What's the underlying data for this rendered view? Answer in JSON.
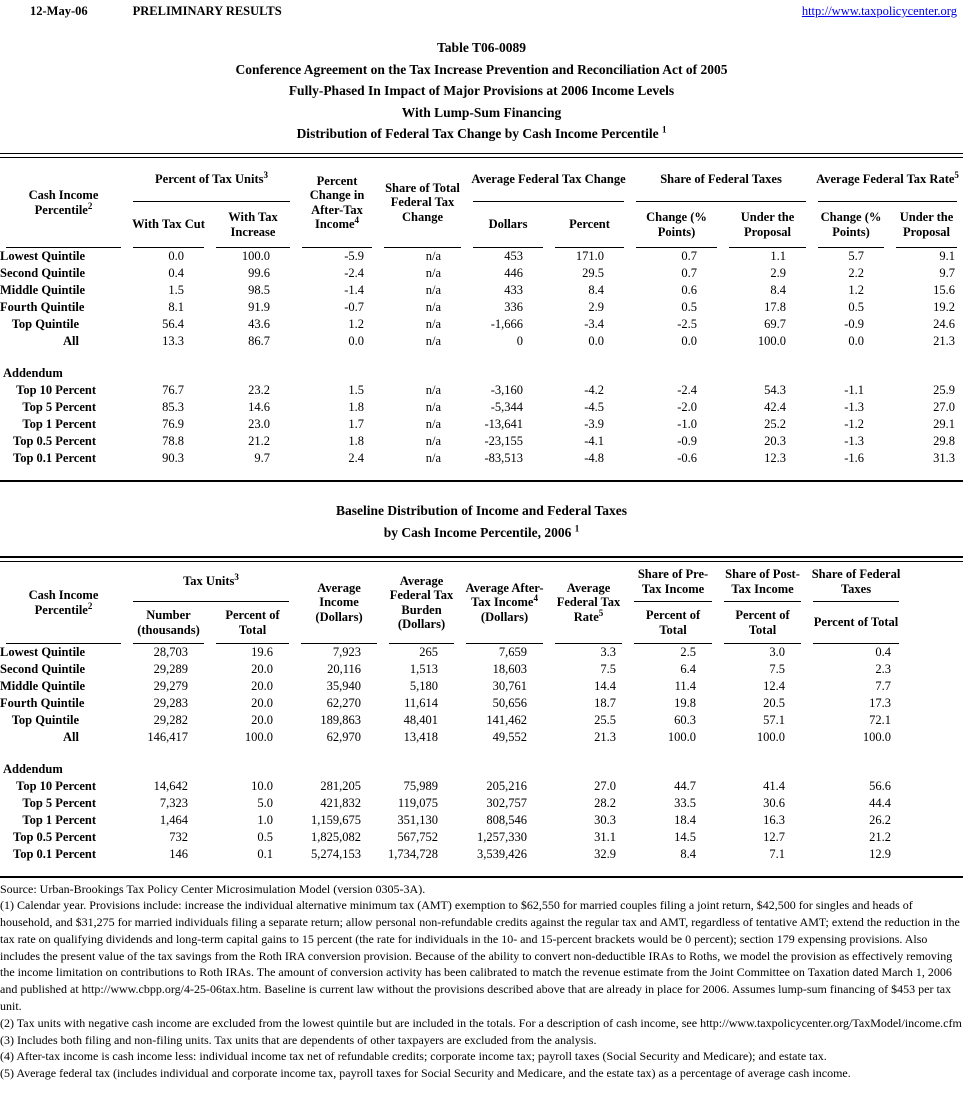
{
  "page_header": {
    "date": "12-May-06",
    "status": "PRELIMINARY RESULTS",
    "url": "http://www.taxpolicycenter.org",
    "link_color": "#0000ee"
  },
  "title_block": {
    "line1": "Table T06-0089",
    "line2": "Conference Agreement on the Tax Increase Prevention and Reconciliation Act of 2005",
    "line3": "Fully-Phased In Impact of Major Provisions at 2006 Income Levels",
    "line4": "With Lump-Sum Financing",
    "line5": {
      "pre": "Distribution of Federal Tax Change by Cash Income Percentile ",
      "sup": "1"
    }
  },
  "table1": {
    "h": {
      "label": {
        "pre": "Cash Income Percentile",
        "sup": "2"
      },
      "tax_units": {
        "pre": "Percent of Tax Units",
        "sup": "3"
      },
      "after_tax": {
        "pre": "Percent Change in After-Tax Income",
        "sup": "4"
      },
      "share_total": {
        "pre": "Share of Total Federal Tax Change"
      },
      "avg_change": {
        "pre": "Average Federal Tax Change"
      },
      "share_taxes": {
        "pre": "Share of Federal Taxes"
      },
      "avg_rate": {
        "pre": "Average Federal Tax Rate",
        "sup": "5"
      },
      "sub": {
        "cut": "With Tax Cut",
        "increase": "With Tax Increase",
        "dollars": "Dollars",
        "percent": "Percent",
        "chg_pts": "Change (% Points)",
        "under": "Under the Proposal"
      }
    },
    "rows": [
      [
        "Lowest Quintile",
        "0.0",
        "100.0",
        "-5.9",
        "n/a",
        "453",
        "171.0",
        "0.7",
        "1.1",
        "5.7",
        "9.1"
      ],
      [
        "Second Quintile",
        "0.4",
        "99.6",
        "-2.4",
        "n/a",
        "446",
        "29.5",
        "0.7",
        "2.9",
        "2.2",
        "9.7"
      ],
      [
        "Middle Quintile",
        "1.5",
        "98.5",
        "-1.4",
        "n/a",
        "433",
        "8.4",
        "0.6",
        "8.4",
        "1.2",
        "15.6"
      ],
      [
        "Fourth Quintile",
        "8.1",
        "91.9",
        "-0.7",
        "n/a",
        "336",
        "2.9",
        "0.5",
        "17.8",
        "0.5",
        "19.2"
      ],
      [
        "Top Quintile",
        "56.4",
        "43.6",
        "1.2",
        "n/a",
        "-1,666",
        "-3.4",
        "-2.5",
        "69.7",
        "-0.9",
        "24.6"
      ],
      [
        "All",
        "13.3",
        "86.7",
        "0.0",
        "n/a",
        "0",
        "0.0",
        "0.0",
        "100.0",
        "0.0",
        "21.3"
      ]
    ],
    "addendum_label": "Addendum",
    "addendum_rows": [
      [
        "Top 10 Percent",
        "76.7",
        "23.2",
        "1.5",
        "n/a",
        "-3,160",
        "-4.2",
        "-2.4",
        "54.3",
        "-1.1",
        "25.9"
      ],
      [
        "Top 5 Percent",
        "85.3",
        "14.6",
        "1.8",
        "n/a",
        "-5,344",
        "-4.5",
        "-2.0",
        "42.4",
        "-1.3",
        "27.0"
      ],
      [
        "Top 1 Percent",
        "76.9",
        "23.0",
        "1.7",
        "n/a",
        "-13,641",
        "-3.9",
        "-1.0",
        "25.2",
        "-1.2",
        "29.1"
      ],
      [
        "Top 0.5 Percent",
        "78.8",
        "21.2",
        "1.8",
        "n/a",
        "-23,155",
        "-4.1",
        "-0.9",
        "20.3",
        "-1.3",
        "29.8"
      ],
      [
        "Top 0.1 Percent",
        "90.3",
        "9.7",
        "2.4",
        "n/a",
        "-83,513",
        "-4.8",
        "-0.6",
        "12.3",
        "-1.6",
        "31.3"
      ]
    ]
  },
  "table2": {
    "title": {
      "line1": "Baseline Distribution of Income and Federal Taxes",
      "line2": {
        "pre": "by Cash Income Percentile, 2006 ",
        "sup": "1"
      }
    },
    "h": {
      "label": {
        "pre": "Cash Income Percentile",
        "sup": "2"
      },
      "tax_units": {
        "pre": "Tax Units",
        "sup": "3"
      },
      "number": "Number (thousands)",
      "pct_total": "Percent of Total",
      "avg_income": "Average Income (Dollars)",
      "burden": "Average Federal Tax Burden (Dollars)",
      "after_tax": {
        "pre": "Average After-Tax Income",
        "sup": "4",
        "post": " (Dollars)"
      },
      "rate": {
        "pre": "Average Federal Tax Rate",
        "sup": "5"
      },
      "pre_tax": "Share of Pre-Tax Income",
      "post_tax": "Share of Post-Tax Income",
      "fed_taxes": "Share of Federal Taxes"
    },
    "rows": [
      [
        "Lowest Quintile",
        "28,703",
        "19.6",
        "7,923",
        "265",
        "7,659",
        "3.3",
        "2.5",
        "3.0",
        "0.4"
      ],
      [
        "Second Quintile",
        "29,289",
        "20.0",
        "20,116",
        "1,513",
        "18,603",
        "7.5",
        "6.4",
        "7.5",
        "2.3"
      ],
      [
        "Middle Quintile",
        "29,279",
        "20.0",
        "35,940",
        "5,180",
        "30,761",
        "14.4",
        "11.4",
        "12.4",
        "7.7"
      ],
      [
        "Fourth Quintile",
        "29,283",
        "20.0",
        "62,270",
        "11,614",
        "50,656",
        "18.7",
        "19.8",
        "20.5",
        "17.3"
      ],
      [
        "Top Quintile",
        "29,282",
        "20.0",
        "189,863",
        "48,401",
        "141,462",
        "25.5",
        "60.3",
        "57.1",
        "72.1"
      ],
      [
        "All",
        "146,417",
        "100.0",
        "62,970",
        "13,418",
        "49,552",
        "21.3",
        "100.0",
        "100.0",
        "100.0"
      ]
    ],
    "addendum_label": "Addendum",
    "addendum_rows": [
      [
        "Top 10 Percent",
        "14,642",
        "10.0",
        "281,205",
        "75,989",
        "205,216",
        "27.0",
        "44.7",
        "41.4",
        "56.6"
      ],
      [
        "Top 5 Percent",
        "7,323",
        "5.0",
        "421,832",
        "119,075",
        "302,757",
        "28.2",
        "33.5",
        "30.6",
        "44.4"
      ],
      [
        "Top 1 Percent",
        "1,464",
        "1.0",
        "1,159,675",
        "351,130",
        "808,546",
        "30.3",
        "18.4",
        "16.3",
        "26.2"
      ],
      [
        "Top 0.5 Percent",
        "732",
        "0.5",
        "1,825,082",
        "567,752",
        "1,257,330",
        "31.1",
        "14.5",
        "12.7",
        "21.2"
      ],
      [
        "Top 0.1 Percent",
        "146",
        "0.1",
        "5,274,153",
        "1,734,728",
        "3,539,426",
        "32.9",
        "8.4",
        "7.1",
        "12.9"
      ]
    ]
  },
  "footnotes": [
    "Source: Urban-Brookings Tax Policy Center Microsimulation Model (version 0305-3A).",
    "(1) Calendar year. Provisions include: increase the individual alternative minimum tax (AMT) exemption to $62,550 for married couples filing a joint return, $42,500 for singles and heads of household, and $31,275 for married individuals filing a separate return; allow personal non-refundable credits against the regular tax and AMT, regardless of tentative AMT; extend the reduction in the tax rate on qualifying dividends and long-term capital gains to 15 percent (the rate for individuals in the 10- and 15-percent brackets would be 0 percent); section 179 expensing provisions.  Also includes the present value of the tax savings from the Roth IRA conversion provision.  Because of the ability to convert non-deductible IRAs to Roths, we model the provision as effectively removing the income limitation on contributions to Roth IRAs.  The amount of conversion activity has been calibrated to match the revenue estimate from the Joint Committee on Taxation dated March 1, 2006 and published at http://www.cbpp.org/4-25-06tax.htm.  Baseline is current law without the provisions described above that are already in place for 2006.  Assumes lump-sum financing of $453 per tax unit.",
    "(2) Tax units with negative cash income are excluded from the lowest quintile but are included in the totals. For a description of cash income, see http://www.taxpolicycenter.org/TaxModel/income.cfm",
    "(3) Includes both filing and non-filing units.  Tax units that are dependents of other taxpayers are excluded from the analysis.",
    "(4) After-tax income is cash income less: individual income tax net of refundable credits; corporate income tax; payroll taxes (Social Security and Medicare); and estate tax.",
    "(5) Average federal tax (includes individual and corporate income tax, payroll taxes for Social Security and Medicare, and the estate tax) as a percentage of average cash income."
  ]
}
